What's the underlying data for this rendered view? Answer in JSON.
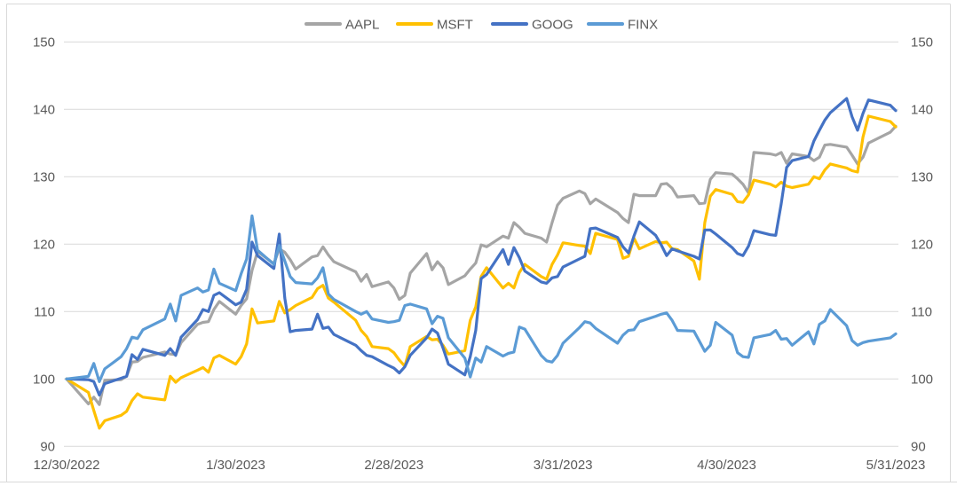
{
  "window": {
    "background": "#FFFFFF"
  },
  "chart_data": {
    "type": "line",
    "title": "",
    "subtitle": "",
    "legend_position": "top",
    "grid": "horizontal",
    "legend": [
      "AAPL",
      "MSFT",
      "GOOG",
      "FINX"
    ],
    "colors": {
      "grid": "#D9D9D9",
      "frame": "#D9D9D9",
      "axis_text": "#595959",
      "background": "#FFFFFF"
    },
    "y_axis": {
      "min": 90,
      "max": 150,
      "step": 10,
      "ticks": [
        90,
        100,
        110,
        120,
        130,
        140,
        150
      ],
      "sides": [
        "left",
        "right"
      ]
    },
    "x_axis": {
      "range": [
        "12/30/2022",
        "5/31/2023"
      ],
      "ticks": [
        "12/30/2022",
        "1/30/2023",
        "2/28/2023",
        "3/31/2023",
        "4/30/2023",
        "5/31/2023"
      ]
    },
    "dates": [
      "12/30/2022",
      "1/3/2023",
      "1/4/2023",
      "1/5/2023",
      "1/6/2023",
      "1/9/2023",
      "1/10/2023",
      "1/11/2023",
      "1/12/2023",
      "1/13/2023",
      "1/17/2023",
      "1/18/2023",
      "1/19/2023",
      "1/20/2023",
      "1/23/2023",
      "1/24/2023",
      "1/25/2023",
      "1/26/2023",
      "1/27/2023",
      "1/30/2023",
      "1/31/2023",
      "2/1/2023",
      "2/2/2023",
      "2/3/2023",
      "2/6/2023",
      "2/7/2023",
      "2/8/2023",
      "2/9/2023",
      "2/10/2023",
      "2/13/2023",
      "2/14/2023",
      "2/15/2023",
      "2/16/2023",
      "2/17/2023",
      "2/21/2023",
      "2/22/2023",
      "2/23/2023",
      "2/24/2023",
      "2/27/2023",
      "2/28/2023",
      "3/1/2023",
      "3/2/2023",
      "3/3/2023",
      "3/6/2023",
      "3/7/2023",
      "3/8/2023",
      "3/9/2023",
      "3/10/2023",
      "3/13/2023",
      "3/14/2023",
      "3/15/2023",
      "3/16/2023",
      "3/17/2023",
      "3/20/2023",
      "3/21/2023",
      "3/22/2023",
      "3/23/2023",
      "3/24/2023",
      "3/27/2023",
      "3/28/2023",
      "3/29/2023",
      "3/30/2023",
      "3/31/2023",
      "4/3/2023",
      "4/4/2023",
      "4/5/2023",
      "4/6/2023",
      "4/10/2023",
      "4/11/2023",
      "4/12/2023",
      "4/13/2023",
      "4/14/2023",
      "4/17/2023",
      "4/18/2023",
      "4/19/2023",
      "4/20/2023",
      "4/21/2023",
      "4/24/2023",
      "4/25/2023",
      "4/26/2023",
      "4/27/2023",
      "4/28/2023",
      "5/1/2023",
      "5/2/2023",
      "5/3/2023",
      "5/4/2023",
      "5/5/2023",
      "5/8/2023",
      "5/9/2023",
      "5/10/2023",
      "5/11/2023",
      "5/12/2023",
      "5/15/2023",
      "5/16/2023",
      "5/17/2023",
      "5/18/2023",
      "5/19/2023",
      "5/22/2023",
      "5/23/2023",
      "5/24/2023",
      "5/25/2023",
      "5/26/2023",
      "5/30/2023",
      "5/31/2023"
    ],
    "series": [
      {
        "name": "AAPL",
        "color": "#A5A5A5",
        "values": [
          100,
          96.3,
          97.3,
          96.2,
          99.8,
          99.9,
          100.4,
          102.5,
          102.6,
          103.2,
          104.0,
          103.7,
          103.6,
          105.4,
          108.1,
          108.4,
          108.5,
          110.3,
          111.5,
          109.6,
          110.9,
          111.9,
          116.1,
          118.9,
          117.1,
          119.3,
          118.8,
          117.7,
          116.3,
          118.1,
          118.3,
          119.6,
          118.4,
          117.4,
          115.9,
          114.5,
          115.5,
          113.7,
          114.4,
          113.5,
          111.8,
          112.4,
          115.7,
          118.6,
          116.2,
          117.4,
          116.5,
          114.0,
          115.3,
          116.3,
          117.2,
          119.9,
          119.6,
          121.2,
          120.9,
          123.2,
          122.5,
          121.6,
          120.9,
          120.3,
          123.2,
          125.8,
          126.8,
          127.9,
          127.5,
          126.0,
          126.7,
          124.7,
          123.8,
          123.2,
          127.4,
          127.2,
          127.2,
          128.9,
          129.0,
          128.3,
          127.0,
          127.2,
          126.0,
          126.1,
          129.6,
          130.6,
          130.4,
          129.7,
          128.9,
          127.6,
          133.6,
          133.4,
          133.2,
          133.6,
          132.0,
          133.4,
          133.0,
          132.4,
          132.9,
          134.7,
          134.8,
          134.4,
          133.2,
          131.9,
          132.9,
          135.0,
          136.6,
          137.5
        ]
      },
      {
        "name": "MSFT",
        "color": "#FFC000",
        "values": [
          100,
          98.0,
          95.3,
          92.7,
          93.8,
          94.6,
          95.2,
          96.8,
          97.8,
          97.3,
          96.9,
          100.4,
          99.5,
          100.2,
          101.3,
          101.7,
          101.0,
          103.1,
          103.5,
          102.2,
          103.3,
          105.2,
          110.4,
          108.3,
          108.6,
          111.5,
          109.8,
          110.3,
          110.9,
          112.1,
          113.4,
          113.9,
          112.0,
          111.4,
          108.7,
          107.2,
          106.3,
          104.8,
          104.5,
          103.9,
          102.8,
          101.9,
          104.8,
          106.3,
          105.8,
          105.9,
          105.0,
          103.7,
          104.2,
          108.7,
          110.7,
          115.2,
          116.5,
          113.5,
          114.2,
          113.5,
          115.8,
          117.0,
          115.2,
          114.8,
          117.0,
          118.4,
          120.2,
          119.8,
          119.7,
          118.6,
          121.6,
          120.7,
          117.9,
          118.2,
          120.9,
          119.3,
          120.4,
          120.2,
          120.3,
          119.3,
          119.2,
          117.5,
          114.8,
          123.2,
          127.1,
          128.1,
          127.4,
          126.3,
          126.2,
          127.3,
          129.5,
          128.9,
          128.5,
          129.2,
          128.6,
          128.4,
          128.9,
          130.0,
          129.7,
          131.0,
          131.9,
          131.3,
          130.9,
          130.7,
          135.9,
          139.0,
          138.2,
          137.4
        ]
      },
      {
        "name": "GOOG",
        "color": "#4472C4",
        "values": [
          100,
          99.9,
          99.6,
          97.6,
          99.3,
          100.1,
          100.4,
          103.6,
          102.9,
          104.4,
          103.5,
          104.5,
          103.5,
          106.2,
          108.8,
          110.3,
          110.0,
          112.4,
          112.8,
          111.0,
          111.4,
          113.3,
          120.3,
          118.3,
          116.4,
          121.5,
          112.0,
          107.0,
          107.2,
          107.4,
          109.6,
          107.5,
          107.7,
          106.6,
          105.0,
          104.2,
          103.5,
          103.3,
          102.0,
          101.6,
          100.9,
          101.8,
          103.5,
          106.1,
          107.4,
          106.8,
          104.6,
          102.2,
          100.6,
          103.3,
          107.2,
          114.9,
          115.5,
          119.2,
          117.0,
          119.5,
          118.0,
          116.0,
          114.4,
          114.2,
          115.0,
          115.2,
          116.6,
          117.8,
          118.2,
          122.3,
          122.4,
          121.0,
          119.6,
          118.7,
          121.2,
          123.3,
          121.3,
          119.9,
          118.3,
          119.3,
          119.0,
          118.2,
          117.8,
          122.1,
          122.1,
          121.5,
          119.5,
          118.6,
          118.3,
          119.7,
          122.0,
          121.4,
          121.3,
          126.0,
          131.4,
          132.4,
          133.0,
          135.3,
          136.9,
          138.4,
          139.5,
          141.6,
          138.9,
          136.9,
          139.4,
          141.4,
          140.6,
          139.8
        ]
      },
      {
        "name": "FINX",
        "color": "#5B9BD5",
        "values": [
          100,
          100.4,
          102.3,
          99.6,
          101.5,
          103.3,
          104.5,
          106.2,
          106.0,
          107.3,
          108.9,
          111.1,
          108.6,
          112.4,
          113.5,
          112.9,
          113.2,
          116.3,
          114.2,
          113.1,
          115.6,
          117.8,
          124.2,
          119.1,
          117.0,
          119.8,
          117.5,
          115.2,
          114.3,
          114.1,
          115.0,
          116.5,
          112.6,
          111.8,
          110.0,
          109.6,
          110.0,
          108.9,
          108.4,
          108.5,
          108.7,
          110.9,
          111.1,
          110.4,
          108.2,
          109.3,
          109.0,
          106.1,
          103.1,
          100.3,
          103.1,
          102.5,
          104.8,
          103.4,
          103.8,
          104.0,
          107.7,
          107.4,
          103.5,
          102.7,
          102.5,
          103.5,
          105.3,
          107.6,
          108.5,
          108.3,
          107.5,
          105.3,
          106.5,
          107.2,
          107.3,
          108.5,
          109.3,
          109.6,
          109.8,
          108.7,
          107.2,
          107.1,
          105.6,
          104.1,
          105.0,
          108.4,
          106.5,
          103.9,
          103.3,
          103.2,
          106.1,
          106.6,
          107.2,
          105.9,
          106.0,
          105.0,
          107.0,
          105.2,
          108.1,
          108.6,
          110.3,
          107.9,
          105.7,
          105.0,
          105.4,
          105.6,
          106.1,
          106.7
        ]
      }
    ]
  }
}
